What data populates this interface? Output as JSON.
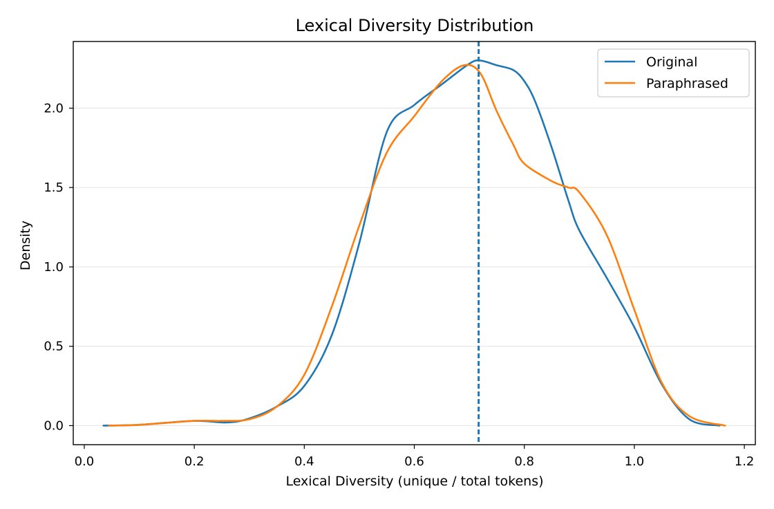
{
  "chart_data": {
    "type": "line",
    "title": "Lexical Diversity Distribution",
    "xlabel": "Lexical Diversity (unique / total tokens)",
    "ylabel": "Density",
    "xlim": [
      -0.02,
      1.22
    ],
    "ylim": [
      -0.12,
      2.42
    ],
    "x_ticks": [
      0.0,
      0.2,
      0.4,
      0.6,
      0.8,
      1.0,
      1.2
    ],
    "x_tick_labels": [
      "0.0",
      "0.2",
      "0.4",
      "0.6",
      "0.8",
      "1.0",
      "1.2"
    ],
    "y_ticks": [
      0.0,
      0.5,
      1.0,
      1.5,
      2.0
    ],
    "y_tick_labels": [
      "0.0",
      "0.5",
      "1.0",
      "1.5",
      "2.0"
    ],
    "grid": "horizontal",
    "legend_position": "upper right",
    "series": [
      {
        "name": "Original",
        "color": "#1f77b4",
        "x": [
          0.035,
          0.1,
          0.2,
          0.26,
          0.3,
          0.35,
          0.4,
          0.45,
          0.5,
          0.55,
          0.6,
          0.65,
          0.7,
          0.72,
          0.75,
          0.78,
          0.8,
          0.82,
          0.85,
          0.88,
          0.9,
          0.95,
          1.0,
          1.05,
          1.1,
          1.155
        ],
        "y": [
          0.0,
          0.005,
          0.03,
          0.02,
          0.045,
          0.12,
          0.25,
          0.57,
          1.15,
          1.85,
          2.02,
          2.15,
          2.28,
          2.3,
          2.27,
          2.24,
          2.17,
          2.04,
          1.75,
          1.42,
          1.23,
          0.93,
          0.62,
          0.26,
          0.04,
          0.0
        ]
      },
      {
        "name": "Paraphrased",
        "color": "#ff7f0e",
        "x": [
          0.045,
          0.1,
          0.2,
          0.25,
          0.3,
          0.35,
          0.4,
          0.45,
          0.5,
          0.55,
          0.6,
          0.65,
          0.69,
          0.72,
          0.75,
          0.78,
          0.8,
          0.85,
          0.88,
          0.9,
          0.95,
          1.0,
          1.05,
          1.1,
          1.165
        ],
        "y": [
          0.0,
          0.005,
          0.03,
          0.03,
          0.04,
          0.12,
          0.32,
          0.75,
          1.26,
          1.72,
          1.95,
          2.17,
          2.27,
          2.22,
          1.98,
          1.77,
          1.65,
          1.54,
          1.5,
          1.47,
          1.2,
          0.73,
          0.27,
          0.06,
          0.0
        ]
      }
    ],
    "vlines": [
      {
        "x": 0.717,
        "color": "#1f77b4",
        "style": "dashed"
      }
    ]
  }
}
